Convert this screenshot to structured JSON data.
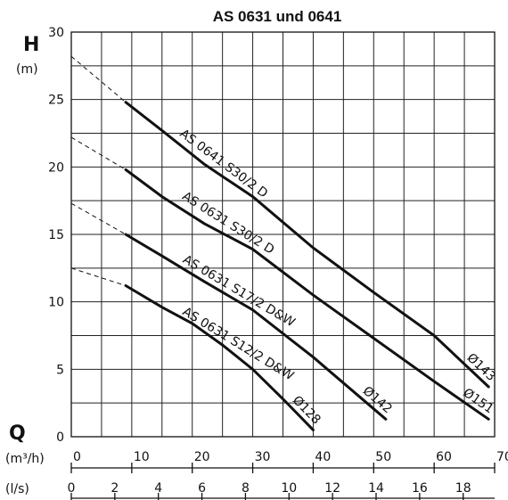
{
  "chart_data": {
    "type": "line",
    "title": "AS 0631 und 0641",
    "y_axis": {
      "symbol": "H",
      "unit": "(m)",
      "range": [
        0,
        30
      ],
      "ticks": [
        "0",
        "5",
        "10",
        "15",
        "20",
        "25",
        "30"
      ]
    },
    "x_axis": {
      "symbol": "Q",
      "unit": "(m³/h)",
      "range": [
        0,
        70
      ],
      "ticks": [
        "0",
        "10",
        "20",
        "30",
        "40",
        "50",
        "60",
        "70"
      ],
      "secondary_unit": "(l/s)",
      "secondary_ticks": [
        "0",
        "2",
        "4",
        "6",
        "8",
        "10",
        "12",
        "14",
        "16",
        "18"
      ],
      "secondary_factor": 3.6
    },
    "grid": true,
    "series": [
      {
        "name": "AS 0641 S30/2 D",
        "end_label": "Ø143",
        "extrapolation": [
          [
            0,
            28.2
          ],
          [
            9,
            24.8
          ]
        ],
        "points": [
          [
            9,
            24.8
          ],
          [
            15,
            22.7
          ],
          [
            22,
            20.2
          ],
          [
            30,
            17.8
          ],
          [
            40,
            14.0
          ],
          [
            50,
            10.7
          ],
          [
            60,
            7.5
          ],
          [
            69,
            3.7
          ]
        ]
      },
      {
        "name": "AS 0631 S30/2 D",
        "end_label": "Ø151",
        "extrapolation": [
          [
            0,
            22.2
          ],
          [
            9,
            19.8
          ]
        ],
        "points": [
          [
            9,
            19.8
          ],
          [
            15,
            17.8
          ],
          [
            22,
            15.8
          ],
          [
            30,
            13.9
          ],
          [
            40,
            10.5
          ],
          [
            50,
            7.3
          ],
          [
            60,
            4.1
          ],
          [
            69,
            1.3
          ]
        ]
      },
      {
        "name": "AS 0631 S17/2 D&W",
        "end_label": "Ø142",
        "extrapolation": [
          [
            0,
            17.3
          ],
          [
            9,
            15.0
          ]
        ],
        "points": [
          [
            9,
            15.0
          ],
          [
            15,
            13.4
          ],
          [
            22,
            11.5
          ],
          [
            30,
            9.4
          ],
          [
            40,
            5.9
          ],
          [
            52,
            1.3
          ]
        ]
      },
      {
        "name": "AS 0631 S12/2 D&W",
        "end_label": "Ø128",
        "extrapolation": [
          [
            0,
            12.5
          ],
          [
            9,
            11.2
          ]
        ],
        "points": [
          [
            9,
            11.2
          ],
          [
            15,
            9.6
          ],
          [
            20,
            8.4
          ],
          [
            25,
            6.8
          ],
          [
            30,
            5.0
          ],
          [
            35,
            2.8
          ],
          [
            40,
            0.5
          ]
        ]
      }
    ]
  }
}
